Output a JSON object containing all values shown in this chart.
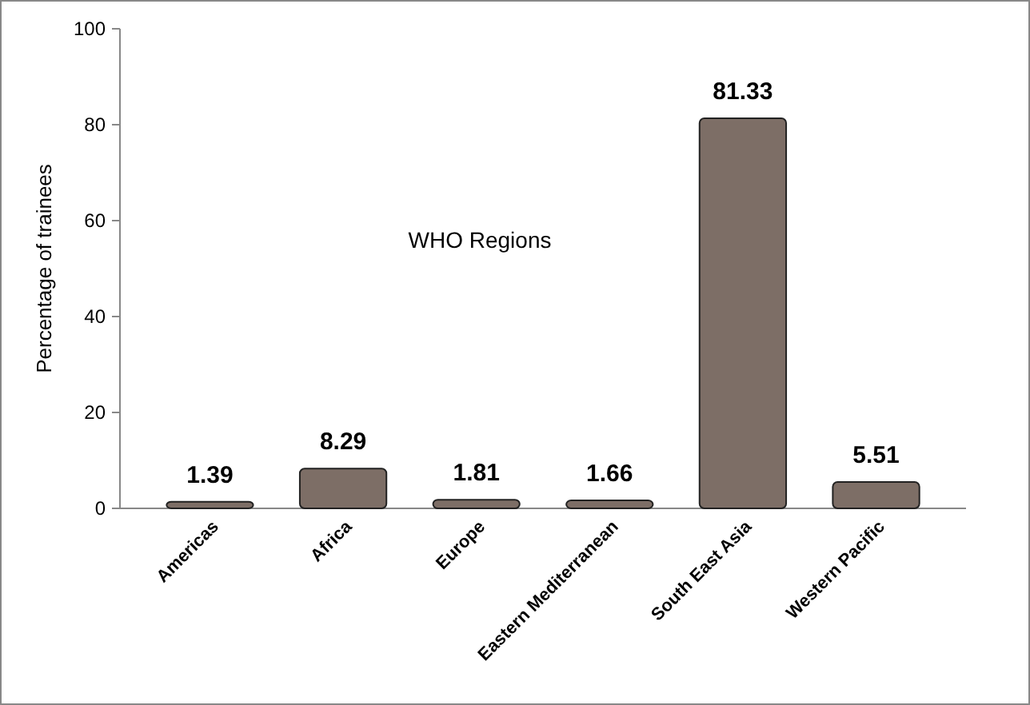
{
  "chart_data": {
    "type": "bar",
    "ylabel": "Percentage of trainees",
    "annotations": [
      "WHO Regions"
    ],
    "categories": [
      "Americas",
      "Africa",
      "Europe",
      "Eastern Mediterranean",
      "South East Asia",
      "Western Pacific"
    ],
    "values": [
      1.39,
      8.29,
      1.81,
      1.66,
      81.33,
      5.51
    ],
    "color": "#7d6e66",
    "ylim": [
      0,
      100
    ],
    "yticks": [
      0,
      20,
      40,
      60,
      80,
      100
    ],
    "data_labels": true
  }
}
